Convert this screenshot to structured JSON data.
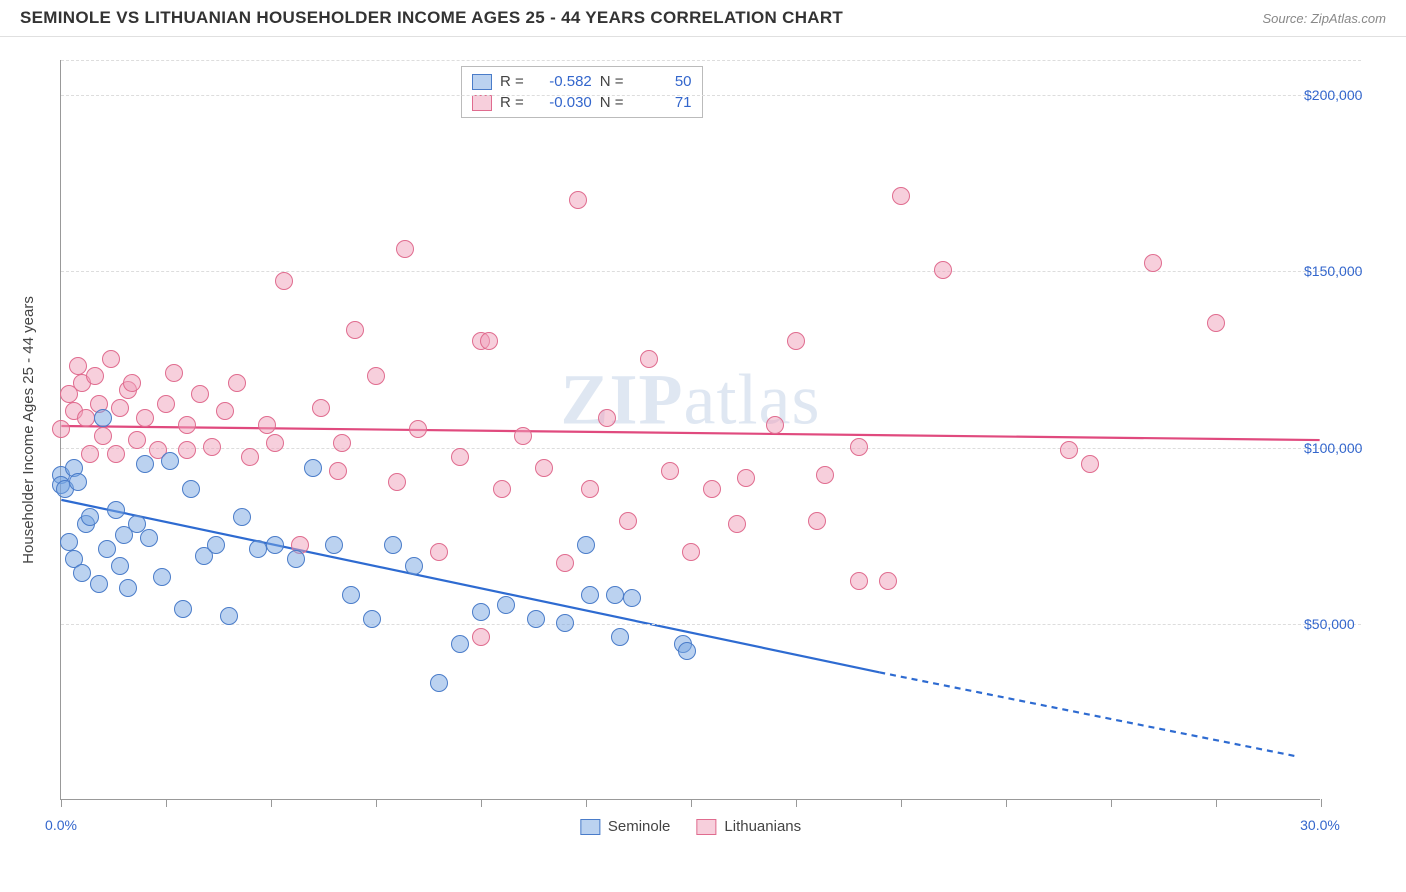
{
  "header": {
    "title": "SEMINOLE VS LITHUANIAN HOUSEHOLDER INCOME AGES 25 - 44 YEARS CORRELATION CHART",
    "source_prefix": "Source: ",
    "source": "ZipAtlas.com"
  },
  "chart": {
    "type": "scatter",
    "ylabel": "Householder Income Ages 25 - 44 years",
    "watermark_a": "ZIP",
    "watermark_b": "atlas",
    "x_min_label": "0.0%",
    "x_max_label": "30.0%",
    "background_color": "#ffffff",
    "grid_color": "#dddddd",
    "axis_color": "#999999",
    "tick_label_color": "#3366cc",
    "xlim": [
      0,
      30
    ],
    "ylim": [
      0,
      210000
    ],
    "y_gridlines": [
      50000,
      100000,
      150000,
      200000,
      210000
    ],
    "y_gridline_top_offset": 8,
    "ytick_labels": {
      "50000": "$50,000",
      "100000": "$100,000",
      "150000": "$150,000",
      "200000": "$200,000"
    },
    "xtick_positions": [
      0,
      2.5,
      5,
      7.5,
      10,
      12.5,
      15,
      17.5,
      20,
      22.5,
      25,
      27.5,
      30
    ],
    "marker_radius": 9,
    "marker_border_width": 1.2,
    "line_width": 2.2,
    "series": {
      "seminole": {
        "label": "Seminole",
        "fill": "rgba(120,165,225,0.5)",
        "stroke": "#4a7cc9",
        "line_color": "#2e6bd1",
        "R": "-0.582",
        "N": "50",
        "trend": {
          "x1": 0,
          "y1": 85000,
          "x2": 19.5,
          "y2": 36000,
          "x2_ext": 29.5,
          "y2_ext": 12000
        },
        "points": [
          [
            0.0,
            92000
          ],
          [
            0.0,
            89000
          ],
          [
            0.1,
            88000
          ],
          [
            0.2,
            73000
          ],
          [
            0.3,
            94000
          ],
          [
            0.3,
            68000
          ],
          [
            0.4,
            90000
          ],
          [
            0.5,
            64000
          ],
          [
            0.6,
            78000
          ],
          [
            0.7,
            80000
          ],
          [
            0.9,
            61000
          ],
          [
            1.0,
            108000
          ],
          [
            1.1,
            71000
          ],
          [
            1.3,
            82000
          ],
          [
            1.4,
            66000
          ],
          [
            1.5,
            75000
          ],
          [
            1.6,
            60000
          ],
          [
            1.8,
            78000
          ],
          [
            2.0,
            95000
          ],
          [
            2.1,
            74000
          ],
          [
            2.4,
            63000
          ],
          [
            2.6,
            96000
          ],
          [
            2.9,
            54000
          ],
          [
            3.1,
            88000
          ],
          [
            3.4,
            69000
          ],
          [
            3.7,
            72000
          ],
          [
            4.0,
            52000
          ],
          [
            4.3,
            80000
          ],
          [
            4.7,
            71000
          ],
          [
            5.1,
            72000
          ],
          [
            5.6,
            68000
          ],
          [
            6.0,
            94000
          ],
          [
            6.5,
            72000
          ],
          [
            6.9,
            58000
          ],
          [
            7.4,
            51000
          ],
          [
            7.9,
            72000
          ],
          [
            8.4,
            66000
          ],
          [
            9.0,
            33000
          ],
          [
            9.5,
            44000
          ],
          [
            10.0,
            53000
          ],
          [
            10.6,
            55000
          ],
          [
            11.3,
            51000
          ],
          [
            12.0,
            50000
          ],
          [
            12.6,
            58000
          ],
          [
            13.3,
            46000
          ],
          [
            13.2,
            58000
          ],
          [
            13.6,
            57000
          ],
          [
            14.8,
            44000
          ],
          [
            14.9,
            42000
          ],
          [
            12.5,
            72000
          ]
        ]
      },
      "lithuanians": {
        "label": "Lithuanians",
        "fill": "rgba(240,160,185,0.5)",
        "stroke": "#e06c8f",
        "line_color": "#e04a7e",
        "R": "-0.030",
        "N": "71",
        "trend": {
          "x1": 0,
          "y1": 106000,
          "x2": 30,
          "y2": 102000
        },
        "points": [
          [
            0.0,
            105000
          ],
          [
            0.2,
            115000
          ],
          [
            0.3,
            110000
          ],
          [
            0.4,
            123000
          ],
          [
            0.5,
            118000
          ],
          [
            0.6,
            108000
          ],
          [
            0.7,
            98000
          ],
          [
            0.8,
            120000
          ],
          [
            0.9,
            112000
          ],
          [
            1.0,
            103000
          ],
          [
            1.2,
            125000
          ],
          [
            1.3,
            98000
          ],
          [
            1.4,
            111000
          ],
          [
            1.6,
            116000
          ],
          [
            1.8,
            102000
          ],
          [
            2.0,
            108000
          ],
          [
            1.7,
            118000
          ],
          [
            2.3,
            99000
          ],
          [
            2.5,
            112000
          ],
          [
            2.7,
            121000
          ],
          [
            3.0,
            106000
          ],
          [
            3.0,
            99000
          ],
          [
            3.3,
            115000
          ],
          [
            3.6,
            100000
          ],
          [
            3.9,
            110000
          ],
          [
            4.2,
            118000
          ],
          [
            4.5,
            97000
          ],
          [
            4.9,
            106000
          ],
          [
            5.3,
            147000
          ],
          [
            5.7,
            72000
          ],
          [
            5.1,
            101000
          ],
          [
            6.2,
            111000
          ],
          [
            6.6,
            93000
          ],
          [
            7.0,
            133000
          ],
          [
            7.5,
            120000
          ],
          [
            8.0,
            90000
          ],
          [
            8.5,
            105000
          ],
          [
            8.2,
            156000
          ],
          [
            9.0,
            70000
          ],
          [
            9.5,
            97000
          ],
          [
            10.0,
            130000
          ],
          [
            10.5,
            88000
          ],
          [
            10.2,
            130000
          ],
          [
            11.0,
            103000
          ],
          [
            11.5,
            94000
          ],
          [
            10.0,
            46000
          ],
          [
            12.0,
            67000
          ],
          [
            12.3,
            170000
          ],
          [
            12.6,
            88000
          ],
          [
            13.0,
            108000
          ],
          [
            13.5,
            79000
          ],
          [
            14.0,
            125000
          ],
          [
            14.5,
            93000
          ],
          [
            15.0,
            70000
          ],
          [
            15.5,
            88000
          ],
          [
            16.1,
            78000
          ],
          [
            16.3,
            91000
          ],
          [
            17.0,
            106000
          ],
          [
            17.5,
            130000
          ],
          [
            18.0,
            79000
          ],
          [
            18.2,
            92000
          ],
          [
            19.0,
            100000
          ],
          [
            19.7,
            62000
          ],
          [
            20.0,
            171000
          ],
          [
            21.0,
            150000
          ],
          [
            24.0,
            99000
          ],
          [
            24.5,
            95000
          ],
          [
            26.0,
            152000
          ],
          [
            27.5,
            135000
          ],
          [
            19.0,
            62000
          ],
          [
            6.7,
            101000
          ]
        ]
      }
    }
  }
}
